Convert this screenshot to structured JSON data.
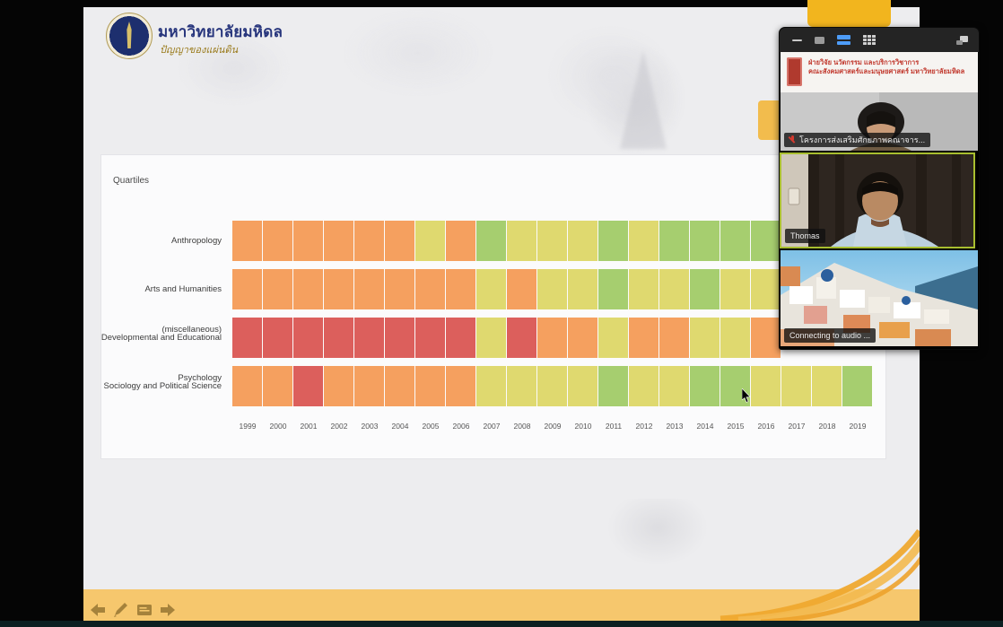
{
  "slide": {
    "logo": {
      "title": "มหาวิทยาลัยมหิดล",
      "subtitle": "ปัญญาของแผ่นดิน"
    },
    "chart_title": "Quartiles"
  },
  "chart_data": {
    "type": "heatmap",
    "title": "Quartiles",
    "x_categories": [
      "1999",
      "2000",
      "2001",
      "2002",
      "2003",
      "2004",
      "2005",
      "2006",
      "2007",
      "2008",
      "2009",
      "2010",
      "2011",
      "2012",
      "2013",
      "2014",
      "2015",
      "2016",
      "2017",
      "2018",
      "2019"
    ],
    "y_categories": [
      "Anthropology",
      "Arts and Humanities (miscellaneous)",
      "Developmental and Educational Psychology",
      "Sociology and Political Science"
    ],
    "color_scale": {
      "green": "#A6CE6F",
      "yellow": "#DFD96F",
      "orange": "#F5A05F",
      "red": "#DC5F5C"
    },
    "note": "cells give quartile color per subject per year; null = occluded by video panel overlay",
    "cells": [
      [
        "orange",
        "orange",
        "orange",
        "orange",
        "orange",
        "orange",
        "yellow",
        "orange",
        "green",
        "yellow",
        "yellow",
        "yellow",
        "green",
        "yellow",
        "green",
        "green",
        "green",
        "green",
        null,
        null,
        null
      ],
      [
        "orange",
        "orange",
        "orange",
        "orange",
        "orange",
        "orange",
        "orange",
        "orange",
        "yellow",
        "orange",
        "yellow",
        "yellow",
        "green",
        "yellow",
        "yellow",
        "green",
        "yellow",
        "yellow",
        null,
        null,
        null
      ],
      [
        "red",
        "red",
        "red",
        "red",
        "red",
        "red",
        "red",
        "red",
        "yellow",
        "red",
        "orange",
        "orange",
        "yellow",
        "orange",
        "orange",
        "yellow",
        "yellow",
        "orange",
        null,
        null,
        null
      ],
      [
        "orange",
        "orange",
        "red",
        "orange",
        "orange",
        "orange",
        "orange",
        "orange",
        "yellow",
        "yellow",
        "yellow",
        "yellow",
        "green",
        "yellow",
        "yellow",
        "green",
        "green",
        "yellow",
        "yellow",
        "yellow",
        "green"
      ]
    ],
    "grid": true,
    "legend": "none visible"
  },
  "video_panel": {
    "toolbar": {
      "minimize": "minimize",
      "speaker_view": "speaker view",
      "strip_view_active": "thumbnail strip view (active)",
      "gallery_view": "gallery view",
      "fullscreen_toggle": "fullscreen toggle"
    },
    "participants": [
      {
        "banner_line1": "ฝ่ายวิจัย นวัตกรรม และบริการวิชาการ",
        "banner_line2": "คณะสังคมศาสตร์และมนุษยศาสตร์ มหาวิทยาลัยมหิดล",
        "name_label": "โครงการส่งเสริมศักยภาพคณาจาร...",
        "muted": true
      },
      {
        "name_label": "Thomas",
        "active_speaker": true
      },
      {
        "name_label": "Connecting to audio ..."
      }
    ]
  }
}
